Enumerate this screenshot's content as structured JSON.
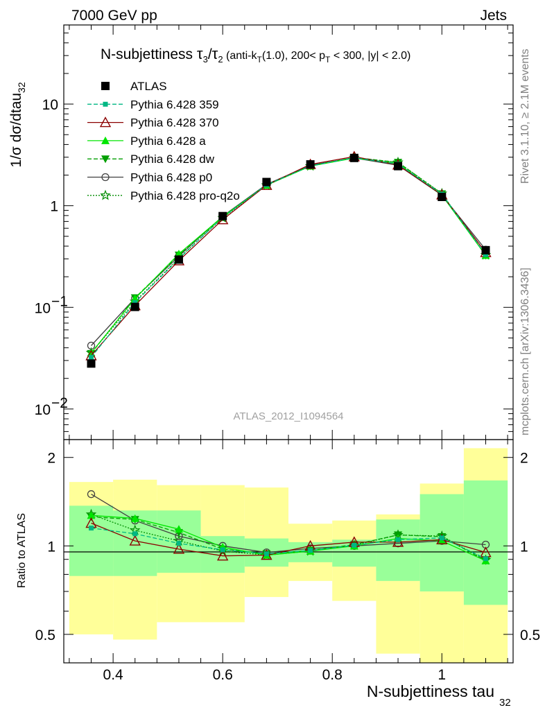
{
  "header": {
    "left": "7000 GeV pp",
    "right": "Jets"
  },
  "plot_title": {
    "lead": "N-subjettiness ",
    "frac_top": "τ",
    "frac_top_sub": "3",
    "frac_slash": "/",
    "frac_bot": "τ",
    "frac_bot_sub": "2",
    "cuts_a": " (anti-k",
    "cuts_sub_t1": "T",
    "cuts_b": "(1.0), 200< p",
    "cuts_sub_t2": "T",
    "cuts_c": " < 300, |y| < 2.0)"
  },
  "side_labels": {
    "rivet": "Rivet 3.1.10, ≥ 2.1M events",
    "mcplots": "mcplots.cern.ch [arXiv:1306.3436]"
  },
  "watermark": "ATLAS_2012_I1094564",
  "y_label_top": {
    "main": "1/σ dσ/dtau",
    "sub": "32"
  },
  "y_label_bottom": "Ratio to ATLAS",
  "x_label": {
    "main": "N-subjettiness tau",
    "sub": "32"
  },
  "top_ticks": [
    {
      "v": 10,
      "label": "10"
    },
    {
      "v": 1,
      "label": "1"
    },
    {
      "v": 0.1,
      "label": "10",
      "sup": "−1"
    },
    {
      "v": 0.01,
      "label": "10",
      "sup": "−2"
    }
  ],
  "colors": {
    "ref": "#000000",
    "p359": "#00b783",
    "p370": "#8b0000",
    "pa": "#00e600",
    "pdw": "#009f00",
    "pp0": "#404040",
    "pq2o": "#008c00",
    "band_outer": "#ffff99",
    "band_inner": "#99ff99"
  },
  "chart_data": [
    {
      "type": "line",
      "scale": "log-y",
      "x_edges": [
        0.32,
        0.4,
        0.48,
        0.56,
        0.64,
        0.72,
        0.8,
        0.88,
        0.96,
        1.04,
        1.12
      ],
      "x": [
        0.36,
        0.44,
        0.52,
        0.6,
        0.68,
        0.76,
        0.84,
        0.92,
        1.0,
        1.08
      ],
      "xlim": [
        0.31,
        1.13
      ],
      "ylim": [
        0.005,
        60
      ],
      "legend_position": "top-left",
      "series": [
        {
          "name": "ATLAS",
          "key": "ref",
          "marker": "square-filled",
          "line": "none",
          "values": [
            0.028,
            0.101,
            0.295,
            0.79,
            1.71,
            2.55,
            2.95,
            2.45,
            1.22,
            0.365
          ]
        },
        {
          "name": "Pythia 6.428 359",
          "key": "p359",
          "marker": "square-small",
          "line": "dashed",
          "values": [
            0.0322,
            0.1116,
            0.301,
            0.768,
            1.603,
            2.46,
            2.97,
            2.57,
            1.3,
            0.33
          ]
        },
        {
          "name": "Pythia 6.428 370",
          "key": "p370",
          "marker": "triangle-open",
          "line": "solid",
          "values": [
            0.0335,
            0.1042,
            0.288,
            0.73,
            1.59,
            2.55,
            3.04,
            2.52,
            1.28,
            0.347
          ]
        },
        {
          "name": "Pythia 6.428 a",
          "key": "pa",
          "marker": "triangle-filled",
          "line": "solid",
          "values": [
            0.0356,
            0.1219,
            0.336,
            0.781,
            1.59,
            2.45,
            2.94,
            2.6,
            1.27,
            0.324
          ]
        },
        {
          "name": "Pythia 6.428 dw",
          "key": "pdw",
          "marker": "triangle-down-filled",
          "line": "dashed",
          "values": [
            0.0351,
            0.1242,
            0.327,
            0.77,
            1.61,
            2.46,
            2.98,
            2.67,
            1.31,
            0.324
          ]
        },
        {
          "name": "Pythia 6.428 p0",
          "key": "pp0",
          "marker": "circle-open",
          "line": "solid",
          "values": [
            0.042,
            0.1232,
            0.319,
            0.79,
            1.62,
            2.5,
            2.95,
            2.5,
            1.27,
            0.369
          ]
        },
        {
          "name": "Pythia 6.428 pro-q2o",
          "key": "pq2o",
          "marker": "star-open",
          "line": "dotted",
          "values": [
            0.0358,
            0.1141,
            0.307,
            0.758,
            1.59,
            2.45,
            2.97,
            2.67,
            1.32,
            0.327
          ]
        }
      ]
    },
    {
      "type": "line",
      "ylabel": "Ratio to ATLAS",
      "x": [
        0.36,
        0.44,
        0.52,
        0.6,
        0.68,
        0.76,
        0.84,
        0.92,
        1.0,
        1.08
      ],
      "xlim": [
        0.31,
        1.13
      ],
      "ylim": [
        0.4,
        2.3
      ],
      "x_ticks": [
        0.4,
        0.6,
        0.8,
        1.0
      ],
      "x_tick_labels": [
        "0.4",
        "0.6",
        "0.8",
        "1"
      ],
      "y_ticks": [
        0.5,
        1,
        2
      ],
      "y_tick_labels": [
        "0.5",
        "1",
        "2"
      ],
      "band_outer": [
        {
          "x0": 0.32,
          "x1": 0.4,
          "lo": 0.5,
          "hi": 1.65
        },
        {
          "x0": 0.4,
          "x1": 0.48,
          "lo": 0.48,
          "hi": 1.68
        },
        {
          "x0": 0.48,
          "x1": 0.56,
          "lo": 0.55,
          "hi": 1.61
        },
        {
          "x0": 0.56,
          "x1": 0.64,
          "lo": 0.55,
          "hi": 1.61
        },
        {
          "x0": 0.64,
          "x1": 0.72,
          "lo": 0.67,
          "hi": 1.58
        },
        {
          "x0": 0.72,
          "x1": 0.8,
          "lo": 0.76,
          "hi": 1.19
        },
        {
          "x0": 0.8,
          "x1": 0.88,
          "lo": 0.65,
          "hi": 1.22
        },
        {
          "x0": 0.88,
          "x1": 0.96,
          "lo": 0.43,
          "hi": 1.28
        },
        {
          "x0": 0.96,
          "x1": 1.04,
          "lo": 0.3,
          "hi": 1.63
        },
        {
          "x0": 1.04,
          "x1": 1.12,
          "lo": 0.3,
          "hi": 2.15
        }
      ],
      "band_inner": [
        {
          "x0": 0.32,
          "x1": 0.4,
          "lo": 0.79,
          "hi": 1.37
        },
        {
          "x0": 0.4,
          "x1": 0.48,
          "lo": 0.79,
          "hi": 1.32
        },
        {
          "x0": 0.48,
          "x1": 0.56,
          "lo": 0.81,
          "hi": 1.32
        },
        {
          "x0": 0.56,
          "x1": 0.64,
          "lo": 0.81,
          "hi": 1.08
        },
        {
          "x0": 0.64,
          "x1": 0.72,
          "lo": 0.85,
          "hi": 1.06
        },
        {
          "x0": 0.72,
          "x1": 0.8,
          "lo": 0.88,
          "hi": 1.03
        },
        {
          "x0": 0.8,
          "x1": 0.88,
          "lo": 0.85,
          "hi": 1.05
        },
        {
          "x0": 0.88,
          "x1": 0.96,
          "lo": 0.76,
          "hi": 1.23
        },
        {
          "x0": 0.96,
          "x1": 1.04,
          "lo": 0.7,
          "hi": 1.5
        },
        {
          "x0": 1.04,
          "x1": 1.12,
          "lo": 0.63,
          "hi": 1.67
        }
      ],
      "series": [
        {
          "name": "Pythia 6.428 359",
          "key": "p359",
          "values": [
            1.15,
            1.1,
            1.02,
            0.97,
            0.94,
            0.965,
            1.005,
            1.05,
            1.065,
            0.905
          ]
        },
        {
          "name": "Pythia 6.428 370",
          "key": "p370",
          "values": [
            1.195,
            1.04,
            0.975,
            0.925,
            0.93,
            1.0,
            1.03,
            1.03,
            1.05,
            0.95
          ]
        },
        {
          "name": "Pythia 6.428 a",
          "key": "pa",
          "values": [
            1.27,
            1.24,
            1.14,
            0.99,
            0.93,
            0.96,
            1.0,
            1.06,
            1.04,
            0.89
          ]
        },
        {
          "name": "Pythia 6.428 dw",
          "key": "pdw",
          "values": [
            1.255,
            1.23,
            1.11,
            0.975,
            0.94,
            0.965,
            1.01,
            1.09,
            1.075,
            0.89
          ]
        },
        {
          "name": "Pythia 6.428 p0",
          "key": "pp0",
          "values": [
            1.5,
            1.22,
            1.08,
            1.0,
            0.95,
            0.98,
            1.0,
            1.02,
            1.04,
            1.01
          ]
        },
        {
          "name": "Pythia 6.428 pro-q2o",
          "key": "pq2o",
          "values": [
            1.28,
            1.13,
            1.04,
            0.96,
            0.93,
            0.96,
            1.005,
            1.09,
            1.08,
            0.895
          ]
        }
      ]
    }
  ]
}
